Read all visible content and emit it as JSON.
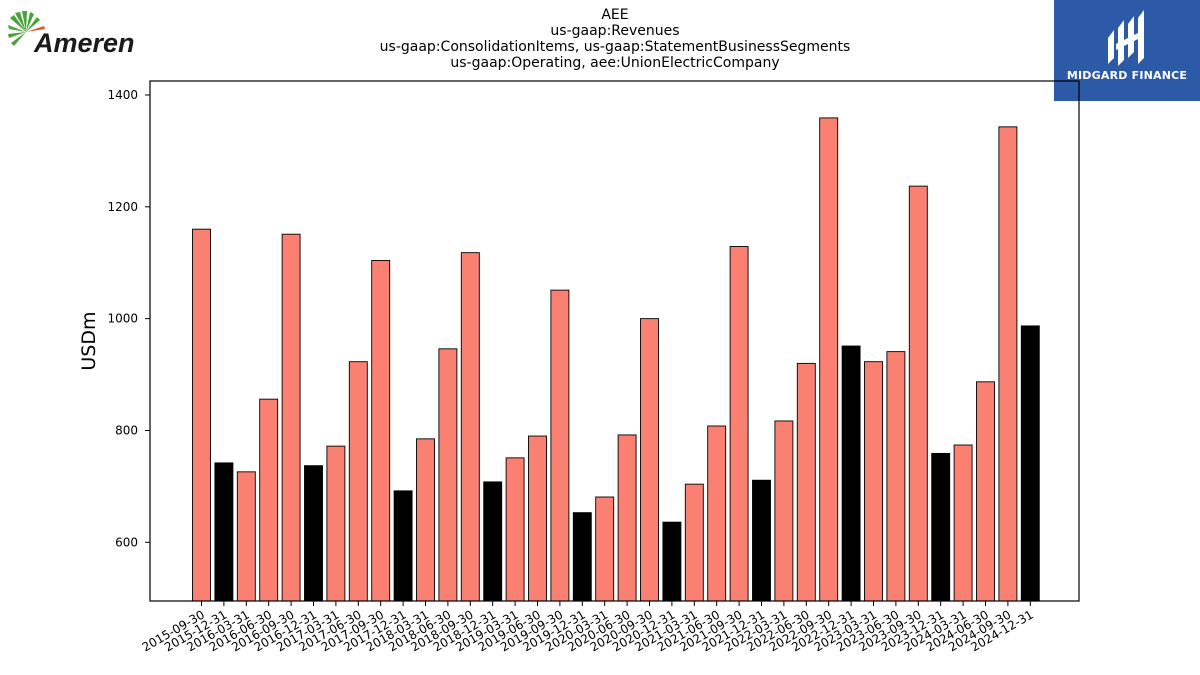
{
  "logos": {
    "left_text": "Ameren",
    "right_text": "MIDGARD FINANCE"
  },
  "chart_data": {
    "type": "bar",
    "title_lines": [
      "AEE",
      "us-gaap:Revenues",
      "us-gaap:ConsolidationItems, us-gaap:StatementBusinessSegments",
      "us-gaap:Operating, aee:UnionElectricCompany"
    ],
    "xlabel": "",
    "ylabel": "USDm",
    "ylim": [
      495,
      1425
    ],
    "yticks": [
      600,
      800,
      1000,
      1200,
      1400
    ],
    "grid": false,
    "colors": {
      "quarter": "#fa8072",
      "year_end": "#000000",
      "edge": "#000000"
    },
    "categories": [
      "2015-09-30",
      "2015-12-31",
      "2016-03-31",
      "2016-06-30",
      "2016-09-30",
      "2016-12-31",
      "2017-03-31",
      "2017-06-30",
      "2017-09-30",
      "2017-12-31",
      "2018-03-31",
      "2018-06-30",
      "2018-09-30",
      "2018-12-31",
      "2019-03-31",
      "2019-06-30",
      "2019-09-30",
      "2019-12-31",
      "2020-03-31",
      "2020-06-30",
      "2020-09-30",
      "2020-12-31",
      "2021-03-31",
      "2021-06-30",
      "2021-09-30",
      "2021-12-31",
      "2022-03-31",
      "2022-06-30",
      "2022-09-30",
      "2022-12-31",
      "2023-03-31",
      "2023-06-30",
      "2023-09-30",
      "2023-12-31",
      "2024-03-31",
      "2024-06-30",
      "2024-09-30",
      "2024-12-31"
    ],
    "values": [
      1160,
      742,
      726,
      856,
      1151,
      737,
      772,
      923,
      1104,
      692,
      785,
      946,
      1118,
      708,
      751,
      790,
      1051,
      653,
      681,
      792,
      1000,
      636,
      704,
      808,
      1129,
      711,
      817,
      920,
      1359,
      951,
      923,
      941,
      1237,
      759,
      774,
      887,
      1343,
      987
    ],
    "series_highlight": [
      "quarter",
      "year_end",
      "quarter",
      "quarter",
      "quarter",
      "year_end",
      "quarter",
      "quarter",
      "quarter",
      "year_end",
      "quarter",
      "quarter",
      "quarter",
      "year_end",
      "quarter",
      "quarter",
      "quarter",
      "year_end",
      "quarter",
      "quarter",
      "quarter",
      "year_end",
      "quarter",
      "quarter",
      "quarter",
      "year_end",
      "quarter",
      "quarter",
      "quarter",
      "year_end",
      "quarter",
      "quarter",
      "quarter",
      "year_end",
      "quarter",
      "quarter",
      "quarter",
      "year_end"
    ]
  }
}
